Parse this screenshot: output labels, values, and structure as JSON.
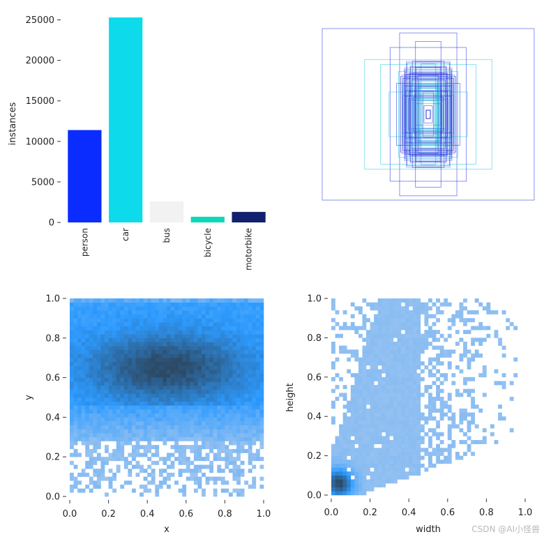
{
  "watermark": "CSDN @AI小怪兽",
  "colors": {
    "bars": [
      "#0a2cff",
      "#0ddbeb",
      "#f2f2f2",
      "#0cd9b6",
      "#13206e"
    ],
    "hist_light": "#a8c8ee",
    "hist_mid": "#2d9bff",
    "hist_dark": "#2c4a66",
    "box_blue": "#2233dd",
    "box_cyan": "#22ccdd"
  },
  "chart_data": [
    {
      "id": "class-counts",
      "type": "bar",
      "title": "",
      "xlabel": "",
      "ylabel": "instances",
      "categories": [
        "person",
        "car",
        "bus",
        "bicycle",
        "motorbike"
      ],
      "values": [
        11400,
        25300,
        2600,
        700,
        1300
      ],
      "ylim": [
        0,
        25000
      ],
      "yticks": [
        "0",
        "5000",
        "10000",
        "15000",
        "20000",
        "25000"
      ],
      "grid": false
    },
    {
      "id": "box-overlay",
      "type": "scatter",
      "title": "",
      "description_free": true,
      "boxes": [
        {
          "w": 1.0,
          "h": 1.0,
          "series": "blue"
        },
        {
          "w": 0.27,
          "h": 0.95,
          "series": "blue"
        },
        {
          "w": 0.6,
          "h": 0.64,
          "series": "cyan"
        },
        {
          "w": 0.45,
          "h": 0.58,
          "series": "cyan"
        },
        {
          "w": 0.36,
          "h": 0.78,
          "series": "blue"
        },
        {
          "w": 0.12,
          "h": 0.85,
          "series": "blue"
        },
        {
          "w": 0.2,
          "h": 0.6,
          "series": "blue"
        },
        {
          "w": 0.15,
          "h": 0.62,
          "series": "blue"
        },
        {
          "w": 0.22,
          "h": 0.52,
          "series": "blue"
        },
        {
          "w": 0.12,
          "h": 0.55,
          "series": "blue"
        },
        {
          "w": 0.18,
          "h": 0.48,
          "series": "blue"
        },
        {
          "w": 0.28,
          "h": 0.5,
          "series": "cyan"
        },
        {
          "w": 0.37,
          "h": 0.26,
          "series": "cyan"
        },
        {
          "w": 0.16,
          "h": 0.4,
          "series": "blue"
        },
        {
          "w": 0.24,
          "h": 0.42,
          "series": "blue"
        },
        {
          "w": 0.1,
          "h": 0.45,
          "series": "blue"
        },
        {
          "w": 0.2,
          "h": 0.3,
          "series": "cyan"
        },
        {
          "w": 0.08,
          "h": 0.32,
          "series": "cyan"
        },
        {
          "w": 0.14,
          "h": 0.2,
          "series": "blue"
        },
        {
          "w": 0.06,
          "h": 0.16,
          "series": "cyan"
        },
        {
          "w": 0.26,
          "h": 0.44,
          "series": "blue"
        },
        {
          "w": 0.17,
          "h": 0.56,
          "series": "blue"
        },
        {
          "w": 0.3,
          "h": 0.36,
          "series": "blue"
        },
        {
          "w": 0.04,
          "h": 0.1,
          "series": "blue"
        }
      ]
    },
    {
      "id": "xy-hist",
      "type": "heatmap",
      "title": "",
      "xlabel": "x",
      "ylabel": "y",
      "xlim": [
        0.0,
        1.0
      ],
      "ylim": [
        0.0,
        1.0
      ],
      "xticks": [
        "0.0",
        "0.2",
        "0.4",
        "0.6",
        "0.8",
        "1.0"
      ],
      "yticks": [
        "0.0",
        "0.2",
        "0.4",
        "0.6",
        "0.8",
        "1.0"
      ],
      "bins": 50,
      "peak": {
        "x": 0.5,
        "y": 0.65
      },
      "grid": false
    },
    {
      "id": "wh-hist",
      "type": "heatmap",
      "title": "",
      "xlabel": "width",
      "ylabel": "height",
      "xlim": [
        0.0,
        1.0
      ],
      "ylim": [
        0.0,
        1.0
      ],
      "xticks": [
        "0.0",
        "0.2",
        "0.4",
        "0.6",
        "0.8",
        "1.0"
      ],
      "yticks": [
        "0.0",
        "0.2",
        "0.4",
        "0.6",
        "0.8",
        "1.0"
      ],
      "bins": 50,
      "peak": {
        "x": 0.04,
        "y": 0.06
      },
      "grid": false
    }
  ]
}
